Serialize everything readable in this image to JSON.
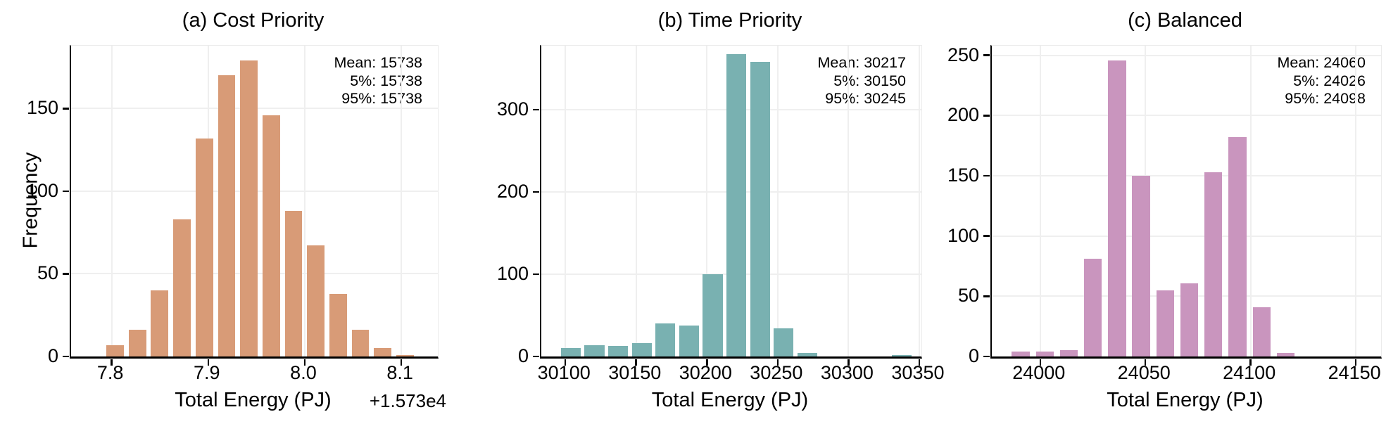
{
  "figure": {
    "background": "#ffffff",
    "grid_color": "#efefef",
    "spine_color": "#000000"
  },
  "chart_data": [
    {
      "type": "bar",
      "subtype": "histogram",
      "title": "(a) Cost Priority",
      "xlabel": "Total Energy (PJ)",
      "ylabel": "Frequency",
      "x_offset_text": "+1.573e4",
      "color": "#d89b77",
      "xlim": [
        7.758,
        8.14
      ],
      "ylim": [
        0,
        188
      ],
      "xticks": [
        {
          "v": 7.8,
          "label": "7.8"
        },
        {
          "v": 7.9,
          "label": "7.9"
        },
        {
          "v": 8.0,
          "label": "8.0"
        },
        {
          "v": 8.1,
          "label": "8.1"
        }
      ],
      "yticks": [
        {
          "v": 0,
          "label": "0"
        },
        {
          "v": 50,
          "label": "50"
        },
        {
          "v": 100,
          "label": "100"
        },
        {
          "v": 150,
          "label": "150"
        }
      ],
      "bins": {
        "start": 7.792,
        "width": 0.0231,
        "rwidth": 0.78
      },
      "counts": [
        7,
        16,
        40,
        83,
        132,
        170,
        179,
        146,
        88,
        67,
        38,
        16,
        5,
        1
      ],
      "grid": true,
      "legend": false,
      "annotation": [
        "Mean: 15738",
        "5%: 15738",
        "95%: 15738"
      ],
      "stats": {
        "mean": 15738,
        "p5": 15738,
        "p95": 15738
      }
    },
    {
      "type": "bar",
      "subtype": "histogram",
      "title": "(b) Time Priority",
      "xlabel": "Total Energy (PJ)",
      "ylabel": "",
      "x_offset_text": "",
      "color": "#79b1b1",
      "xlim": [
        30083,
        30353
      ],
      "ylim": [
        0,
        378
      ],
      "xticks": [
        {
          "v": 30100,
          "label": "30100"
        },
        {
          "v": 30150,
          "label": "30150"
        },
        {
          "v": 30200,
          "label": "30200"
        },
        {
          "v": 30250,
          "label": "30250"
        },
        {
          "v": 30300,
          "label": "30300"
        },
        {
          "v": 30350,
          "label": "30350"
        }
      ],
      "yticks": [
        {
          "v": 0,
          "label": "0"
        },
        {
          "v": 100,
          "label": "100"
        },
        {
          "v": 200,
          "label": "200"
        },
        {
          "v": 300,
          "label": "300"
        }
      ],
      "bins": {
        "start": 30095.5,
        "width": 16.7,
        "rwidth": 0.84
      },
      "counts": [
        10,
        14,
        13,
        16,
        40,
        38,
        100,
        368,
        358,
        34,
        4,
        0,
        0,
        0,
        2
      ],
      "grid": true,
      "legend": false,
      "annotation": [
        "Mean: 30217",
        "5%: 30150",
        "95%: 30245"
      ],
      "stats": {
        "mean": 30217,
        "p5": 30150,
        "p95": 30245
      }
    },
    {
      "type": "bar",
      "subtype": "histogram",
      "title": "(c) Balanced",
      "xlabel": "Total Energy (PJ)",
      "ylabel": "",
      "x_offset_text": "",
      "color": "#c995be",
      "xlim": [
        23977,
        24163
      ],
      "ylim": [
        0,
        258
      ],
      "xticks": [
        {
          "v": 24000,
          "label": "24000"
        },
        {
          "v": 24050,
          "label": "24050"
        },
        {
          "v": 24100,
          "label": "24100"
        },
        {
          "v": 24150,
          "label": "24150"
        }
      ],
      "yticks": [
        {
          "v": 0,
          "label": "0"
        },
        {
          "v": 50,
          "label": "50"
        },
        {
          "v": 100,
          "label": "100"
        },
        {
          "v": 150,
          "label": "150"
        },
        {
          "v": 200,
          "label": "200"
        },
        {
          "v": 250,
          "label": "250"
        }
      ],
      "bins": {
        "start": 23985,
        "width": 11.45,
        "rwidth": 0.74
      },
      "counts": [
        4,
        4,
        5,
        81,
        246,
        150,
        55,
        61,
        153,
        182,
        41,
        3
      ],
      "grid": true,
      "legend": false,
      "annotation": [
        "Mean: 24060",
        "5%: 24026",
        "95%: 24098"
      ],
      "stats": {
        "mean": 24060,
        "p5": 24026,
        "p95": 24098
      }
    }
  ]
}
